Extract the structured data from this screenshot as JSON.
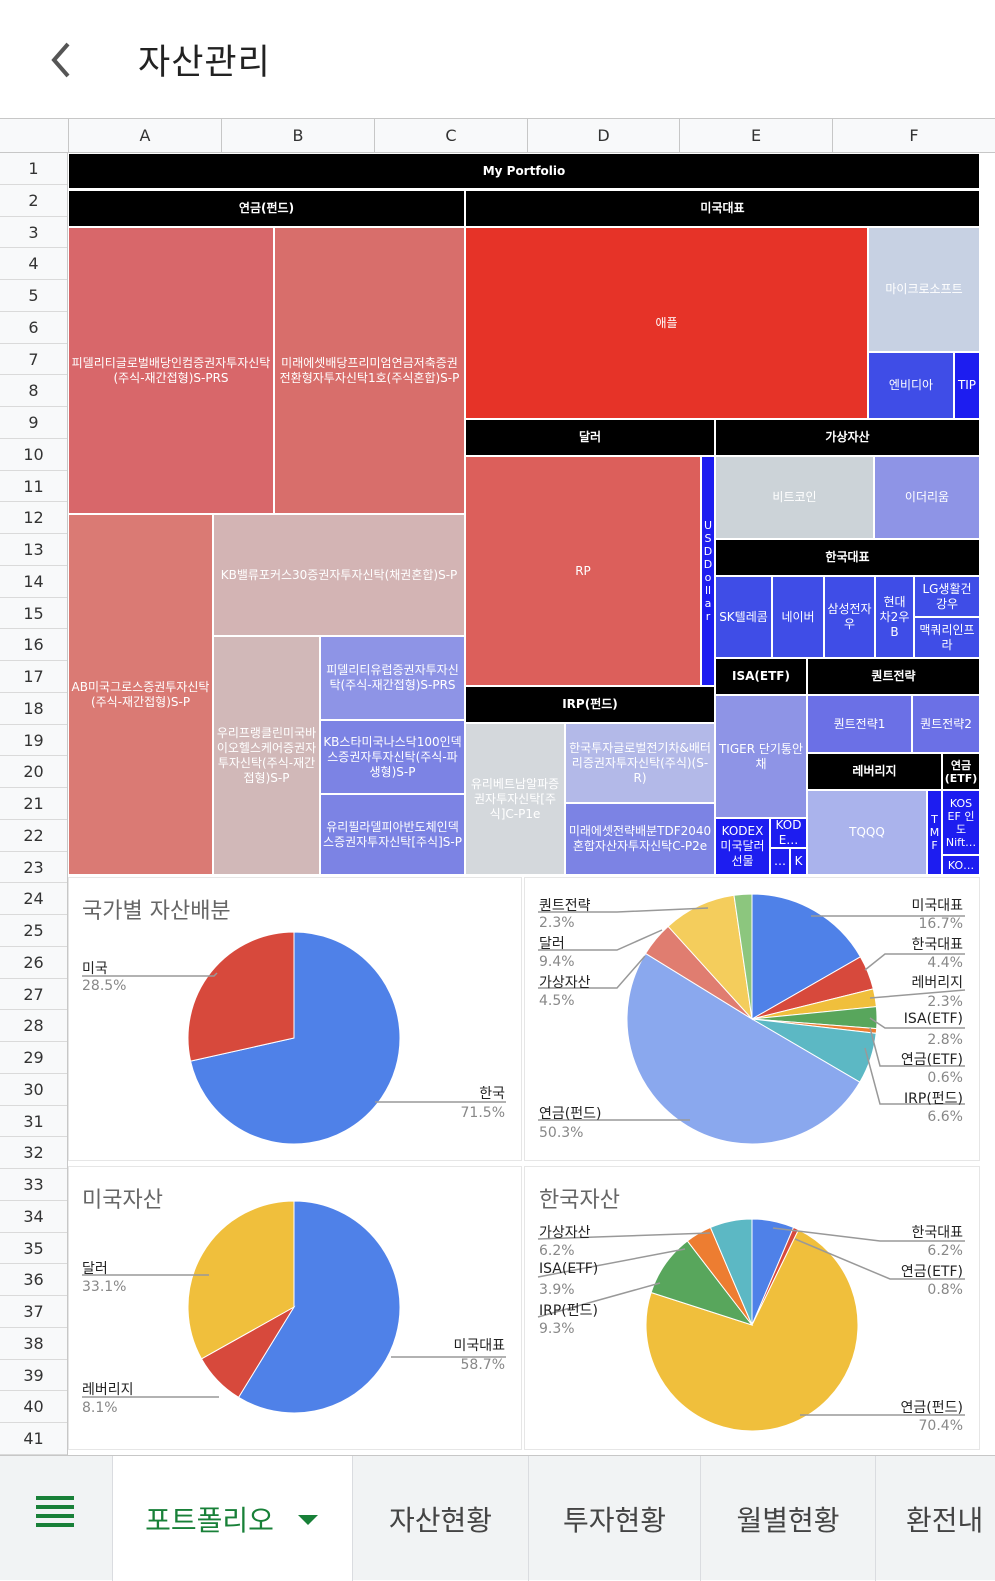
{
  "header": {
    "title": "자산관리"
  },
  "columns": [
    "A",
    "B",
    "C",
    "D",
    "E",
    "F"
  ],
  "rows": [
    "1",
    "2",
    "3",
    "4",
    "5",
    "6",
    "7",
    "8",
    "9",
    "10",
    "11",
    "12",
    "13",
    "14",
    "15",
    "16",
    "17",
    "18",
    "19",
    "20",
    "21",
    "22",
    "23",
    "24",
    "25",
    "26",
    "27",
    "28",
    "29",
    "30",
    "31",
    "32",
    "33",
    "34",
    "35",
    "36",
    "37",
    "38",
    "39",
    "40",
    "41"
  ],
  "treemap": {
    "root": "My Portfolio",
    "pension_fund": "연금(펀드)",
    "us_rep": "미국대표",
    "dollar": "달러",
    "crypto": "가상자산",
    "kr_rep": "한국대표",
    "irp": "IRP(펀드)",
    "isa": "ISA(ETF)",
    "quant": "퀀트전략",
    "leverage": "레버리지",
    "pension_etf": "연금\n(ETF)",
    "items": {
      "fidelity_global": "피델리티글로벌배당인컴증권자투자신탁(주식-재간접형)S-PRS",
      "mirae_dividend": "미래에셋배당프리미엄연금저축증권전환형자투자신탁1호(주식혼합)S-P",
      "ab_growth": "AB미국그로스증권투자신탁(주식-재간접형)S-P",
      "kb_value": "KB밸류포커스30증권자투자신탁(채권혼합)S-P",
      "woori_health": "우리프랭클린미국바이오헬스케어증권자투자신탁(주식-재간접형)S-P",
      "fidelity_europe": "피델리티유럽증권자투자신탁(주식-재간접형)S-PRS",
      "kb_nasdaq": "KB스타미국나스닥100인덱스증권자투자신탁(주식-파생형)S-P",
      "woori_phil": "유리필라델피아반도체인덱스증권자투자신탁[주식]S-P",
      "apple": "애플",
      "microsoft": "마이크로소프트",
      "nvidia": "엔비디아",
      "tip": "TIP",
      "rp": "RP",
      "usd": "USD Dollar",
      "bitcoin": "비트코인",
      "ethereum": "이더리움",
      "sk_telecom": "SK텔레콤",
      "naver": "네이버",
      "samsung": "삼성전자우",
      "hyundai": "현대차2우B",
      "lg_health": "LG생활건강우",
      "macquarie": "맥쿼리인프라",
      "yuri_beta": "유리베트남알파증권자투자신탁[주식]C-P1e",
      "hantu_global": "한국투자글로벌전기차&배터리증권자투자신탁(주식)(S-R)",
      "mirae_tdf": "미래에셋전략배분TDF2040혼합자산자투자신탁C-P2e",
      "tiger": "TIGER 단기통안채",
      "kodex_dollar": "KODEX 미국달러선물",
      "kod_e": "KOD E…",
      "dots": "…",
      "k": "K",
      "quant1": "퀀트전략1",
      "quant2": "퀀트전략2",
      "tqqq": "TQQQ",
      "tmf": "T M F",
      "kosef": "KOS EF 인도 Nift…",
      "ko": "KO…"
    }
  },
  "chart_data": [
    {
      "type": "pie",
      "title": "국가별 자산배분",
      "labels": [
        "한국",
        "미국"
      ],
      "values": [
        71.5,
        28.5
      ],
      "value_labels": [
        "71.5%",
        "28.5%"
      ],
      "colors": [
        "#4f81e8",
        "#d7493c"
      ]
    },
    {
      "type": "pie",
      "title": "",
      "labels": [
        "미국대표",
        "한국대표",
        "레버리지",
        "ISA(ETF)",
        "연금(ETF)",
        "IRP(펀드)",
        "연금(펀드)",
        "가상자산",
        "달러",
        "퀀트전략"
      ],
      "values": [
        16.7,
        4.4,
        2.3,
        2.8,
        0.6,
        6.6,
        50.3,
        4.5,
        9.4,
        2.3
      ],
      "value_labels": [
        "16.7%",
        "4.4%",
        "2.3%",
        "2.8%",
        "0.6%",
        "6.6%",
        "50.3%",
        "4.5%",
        "9.4%",
        "2.3%"
      ],
      "colors": [
        "#4f81e8",
        "#d7493c",
        "#f0bf3c",
        "#58a65c",
        "#ed7d31",
        "#5cb8c4",
        "#8aa8ee",
        "#e07d70",
        "#f4cd5c",
        "#8cc67e"
      ]
    },
    {
      "type": "pie",
      "title": "미국자산",
      "labels": [
        "미국대표",
        "레버리지",
        "달러"
      ],
      "values": [
        58.7,
        8.1,
        33.1
      ],
      "value_labels": [
        "58.7%",
        "8.1%",
        "33.1%"
      ],
      "colors": [
        "#4f81e8",
        "#d7493c",
        "#f0bf3c"
      ]
    },
    {
      "type": "pie",
      "title": "한국자산",
      "labels": [
        "한국대표",
        "연금(ETF)",
        "연금(펀드)",
        "IRP(펀드)",
        "ISA(ETF)",
        "가상자산"
      ],
      "values": [
        6.2,
        0.8,
        70.4,
        9.3,
        3.9,
        6.2
      ],
      "value_labels": [
        "6.2%",
        "0.8%",
        "70.4%",
        "9.3%",
        "3.9%",
        "6.2%"
      ],
      "colors": [
        "#4f81e8",
        "#d7493c",
        "#f0bf3c",
        "#58a65c",
        "#ed7d31",
        "#5cb8c4"
      ]
    }
  ],
  "tabs": [
    "포트폴리오",
    "자산현황",
    "투자현황",
    "월별현황",
    "환전내"
  ]
}
